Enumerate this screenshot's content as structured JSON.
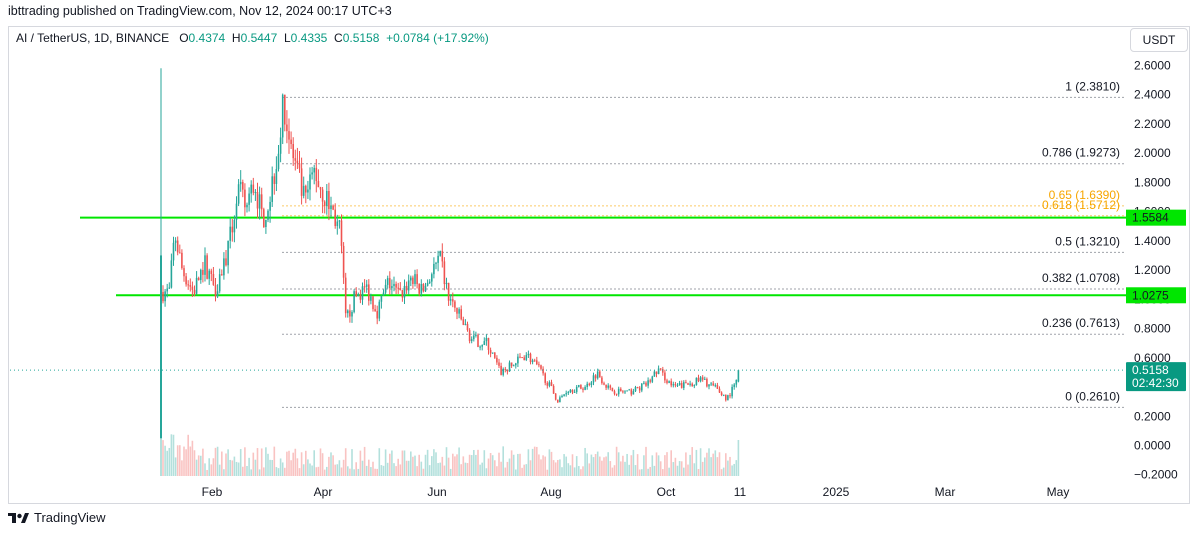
{
  "header": {
    "published": "ibttrading published on TradingView.com, Nov 12, 2024 00:17 UTC+3"
  },
  "legend": {
    "symbol": "AI / TetherUS, 1D, BINANCE",
    "o_label": "O",
    "o": "0.4374",
    "h_label": "H",
    "h": "0.5447",
    "l_label": "L",
    "l": "0.4335",
    "c_label": "C",
    "c": "0.5158",
    "change": "+0.0784 (+17.92%)"
  },
  "currency_button": "USDT",
  "footer": {
    "brand": "TradingView",
    "logo_icon": "tradingview-logo-icon"
  },
  "colors": {
    "up": "#26a69a",
    "down": "#ef5350",
    "level_line": "#00e600",
    "fib": "#9598a1",
    "fib_orange": "#f7a600",
    "price_badge": "#089981"
  },
  "chart_data": {
    "type": "candlestick",
    "ylim": [
      -0.2,
      2.6
    ],
    "y_ticks": [
      "2.6000",
      "2.4000",
      "2.2000",
      "2.0000",
      "1.8000",
      "1.6000",
      "1.4000",
      "1.2000",
      "1.0000",
      "0.8000",
      "0.6000",
      "0.4000",
      "0.2000",
      "0.0000",
      "−0.2000"
    ],
    "x_ticks": [
      "Feb",
      "Apr",
      "Jun",
      "Aug",
      "Oct",
      "11",
      "2025",
      "Mar",
      "May"
    ],
    "last_price": "0.5158",
    "countdown": "02:42:30",
    "horizontal_levels": [
      {
        "value": 1.5584,
        "label": "1.5584"
      },
      {
        "value": 1.0275,
        "label": "1.0275"
      }
    ],
    "fib_levels": [
      {
        "ratio": "1",
        "value": 2.381,
        "label": "1 (2.3810)"
      },
      {
        "ratio": "0.786",
        "value": 1.9273,
        "label": "0.786 (1.9273)"
      },
      {
        "ratio": "0.65",
        "value": 1.639,
        "label": "0.65 (1.6390)",
        "highlight": true
      },
      {
        "ratio": "0.618",
        "value": 1.5712,
        "label": "0.618 (1.5712)",
        "highlight": true
      },
      {
        "ratio": "0.5",
        "value": 1.321,
        "label": "0.5 (1.3210)"
      },
      {
        "ratio": "0.382",
        "value": 1.0708,
        "label": "0.382 (1.0708)"
      },
      {
        "ratio": "0.236",
        "value": 0.7613,
        "label": "0.236 (0.7613)"
      },
      {
        "ratio": "0",
        "value": 0.261,
        "label": "0 (0.2610)"
      }
    ],
    "close_series": [
      {
        "date": "2024-01-09",
        "close": 1.05
      },
      {
        "date": "2024-01-12",
        "close": 1.45
      },
      {
        "date": "2024-01-16",
        "close": 1.2
      },
      {
        "date": "2024-01-22",
        "close": 1.05
      },
      {
        "date": "2024-01-28",
        "close": 1.25
      },
      {
        "date": "2024-02-03",
        "close": 1.08
      },
      {
        "date": "2024-02-10",
        "close": 1.35
      },
      {
        "date": "2024-02-15",
        "close": 1.75
      },
      {
        "date": "2024-02-19",
        "close": 1.62
      },
      {
        "date": "2024-02-24",
        "close": 1.8
      },
      {
        "date": "2024-02-28",
        "close": 1.55
      },
      {
        "date": "2024-03-03",
        "close": 1.7
      },
      {
        "date": "2024-03-07",
        "close": 2.0
      },
      {
        "date": "2024-03-11",
        "close": 2.35
      },
      {
        "date": "2024-03-14",
        "close": 2.05
      },
      {
        "date": "2024-03-18",
        "close": 1.85
      },
      {
        "date": "2024-03-22",
        "close": 1.65
      },
      {
        "date": "2024-03-27",
        "close": 1.88
      },
      {
        "date": "2024-04-01",
        "close": 1.72
      },
      {
        "date": "2024-04-06",
        "close": 1.6
      },
      {
        "date": "2024-04-10",
        "close": 1.45
      },
      {
        "date": "2024-04-13",
        "close": 0.85
      },
      {
        "date": "2024-04-18",
        "close": 1.02
      },
      {
        "date": "2024-04-24",
        "close": 1.08
      },
      {
        "date": "2024-04-30",
        "close": 0.92
      },
      {
        "date": "2024-05-06",
        "close": 1.12
      },
      {
        "date": "2024-05-12",
        "close": 1.02
      },
      {
        "date": "2024-05-18",
        "close": 1.15
      },
      {
        "date": "2024-05-24",
        "close": 1.05
      },
      {
        "date": "2024-05-30",
        "close": 1.2
      },
      {
        "date": "2024-06-03",
        "close": 1.26
      },
      {
        "date": "2024-06-07",
        "close": 1.02
      },
      {
        "date": "2024-06-13",
        "close": 0.88
      },
      {
        "date": "2024-06-20",
        "close": 0.72
      },
      {
        "date": "2024-06-28",
        "close": 0.7
      },
      {
        "date": "2024-07-05",
        "close": 0.5
      },
      {
        "date": "2024-07-12",
        "close": 0.55
      },
      {
        "date": "2024-07-19",
        "close": 0.63
      },
      {
        "date": "2024-07-26",
        "close": 0.52
      },
      {
        "date": "2024-08-02",
        "close": 0.38
      },
      {
        "date": "2024-08-05",
        "close": 0.3
      },
      {
        "date": "2024-08-10",
        "close": 0.38
      },
      {
        "date": "2024-08-20",
        "close": 0.4
      },
      {
        "date": "2024-08-26",
        "close": 0.5
      },
      {
        "date": "2024-09-02",
        "close": 0.38
      },
      {
        "date": "2024-09-12",
        "close": 0.36
      },
      {
        "date": "2024-09-22",
        "close": 0.42
      },
      {
        "date": "2024-09-28",
        "close": 0.52
      },
      {
        "date": "2024-10-06",
        "close": 0.4
      },
      {
        "date": "2024-10-14",
        "close": 0.42
      },
      {
        "date": "2024-10-21",
        "close": 0.45
      },
      {
        "date": "2024-10-28",
        "close": 0.4
      },
      {
        "date": "2024-11-04",
        "close": 0.32
      },
      {
        "date": "2024-11-09",
        "close": 0.43
      },
      {
        "date": "2024-11-11",
        "close": 0.5158
      }
    ]
  }
}
